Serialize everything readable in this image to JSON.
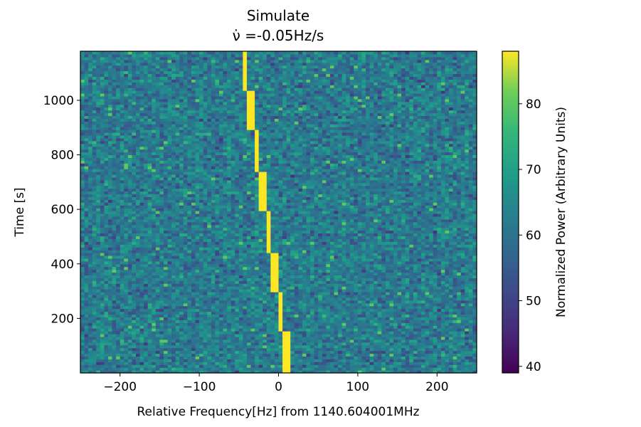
{
  "chart_data": {
    "type": "heatmap",
    "title": "Simulate",
    "subtitle": "ν̇ =-0.05Hz/s",
    "xlabel": "Relative Frequency[Hz] from 1140.604001MHz",
    "ylabel": "Time [s]",
    "colorbar_label": "Normalized Power (Arbitrary Units)",
    "colormap": "viridis",
    "xlim": [
      -250,
      250
    ],
    "ylim": [
      0,
      1180
    ],
    "clim": [
      39,
      88
    ],
    "x_ticks": [
      -200,
      -100,
      0,
      100,
      200
    ],
    "x_tick_labels": [
      "−200",
      "−100",
      "0",
      "100",
      "200"
    ],
    "y_ticks": [
      200,
      400,
      600,
      800,
      1000
    ],
    "y_tick_labels": [
      "200",
      "400",
      "600",
      "800",
      "1000"
    ],
    "colorbar_ticks": [
      40,
      50,
      60,
      70,
      80
    ],
    "colorbar_tick_labels": [
      "40",
      "50",
      "60",
      "70",
      "80"
    ],
    "grid": {
      "freq_bins": 100,
      "time_bins": 115,
      "noise_level": [
        46,
        76
      ],
      "noise_mean": 62
    },
    "signal": {
      "power": 88,
      "bandwidth_hz": 5,
      "drift_rate_hz_per_s": -0.05,
      "segments": [
        {
          "t_start": 0,
          "t_end": 150,
          "freq": 10
        },
        {
          "t_start": 150,
          "t_end": 300,
          "freq": 2.5
        },
        {
          "t_start": 300,
          "t_end": 445,
          "freq": -5
        },
        {
          "t_start": 445,
          "t_end": 595,
          "freq": -12.5
        },
        {
          "t_start": 595,
          "t_end": 740,
          "freq": -20
        },
        {
          "t_start": 740,
          "t_end": 890,
          "freq": -27.5
        },
        {
          "t_start": 890,
          "t_end": 1040,
          "freq": -35
        },
        {
          "t_start": 1040,
          "t_end": 1180,
          "freq": -42.5
        }
      ]
    }
  }
}
